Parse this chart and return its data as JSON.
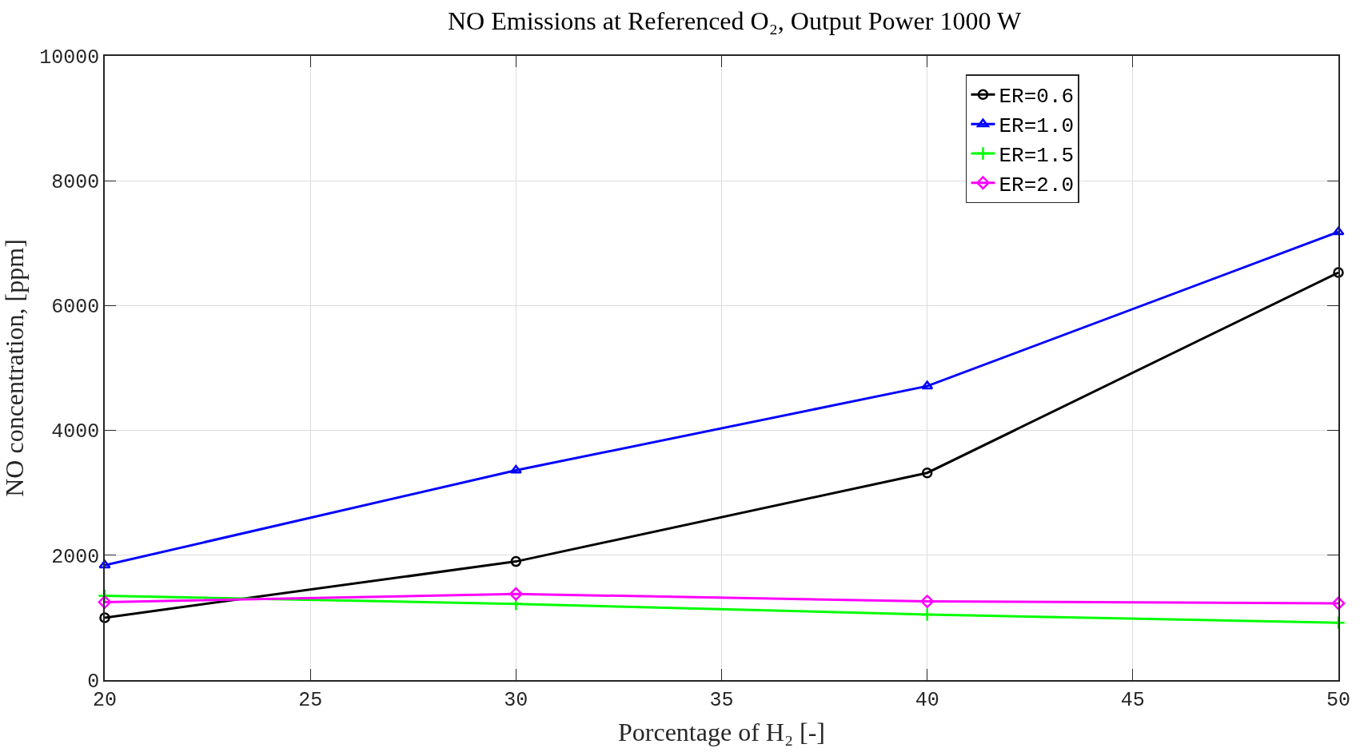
{
  "chart_data": {
    "type": "line",
    "title": "NO Emissions at Referenced O₂, Output Power 1000 W",
    "xlabel": "Porcentage of H₂ [-]",
    "ylabel": "NO concentration, [ppm]",
    "x": [
      20,
      30,
      40,
      50
    ],
    "series": [
      {
        "name": "ER=0.6",
        "color": "#000000",
        "marker": "circle",
        "values": [
          1000,
          1900,
          3320,
          6530
        ]
      },
      {
        "name": "ER=1.0",
        "color": "#0000ff",
        "marker": "triangle",
        "values": [
          1840,
          3360,
          4710,
          7180
        ]
      },
      {
        "name": "ER=1.5",
        "color": "#00ff00",
        "marker": "cross",
        "values": [
          1350,
          1220,
          1050,
          920
        ]
      },
      {
        "name": "ER=2.0",
        "color": "#ff00ff",
        "marker": "diamond",
        "values": [
          1250,
          1380,
          1260,
          1230
        ]
      }
    ],
    "xlim": [
      20,
      50
    ],
    "xticks": [
      20,
      25,
      30,
      35,
      40,
      45,
      50
    ],
    "ylim": [
      0,
      10000
    ],
    "yticks": [
      0,
      2000,
      4000,
      6000,
      8000,
      10000
    ],
    "grid": true,
    "legend": "top right",
    "line_style": "solid"
  }
}
